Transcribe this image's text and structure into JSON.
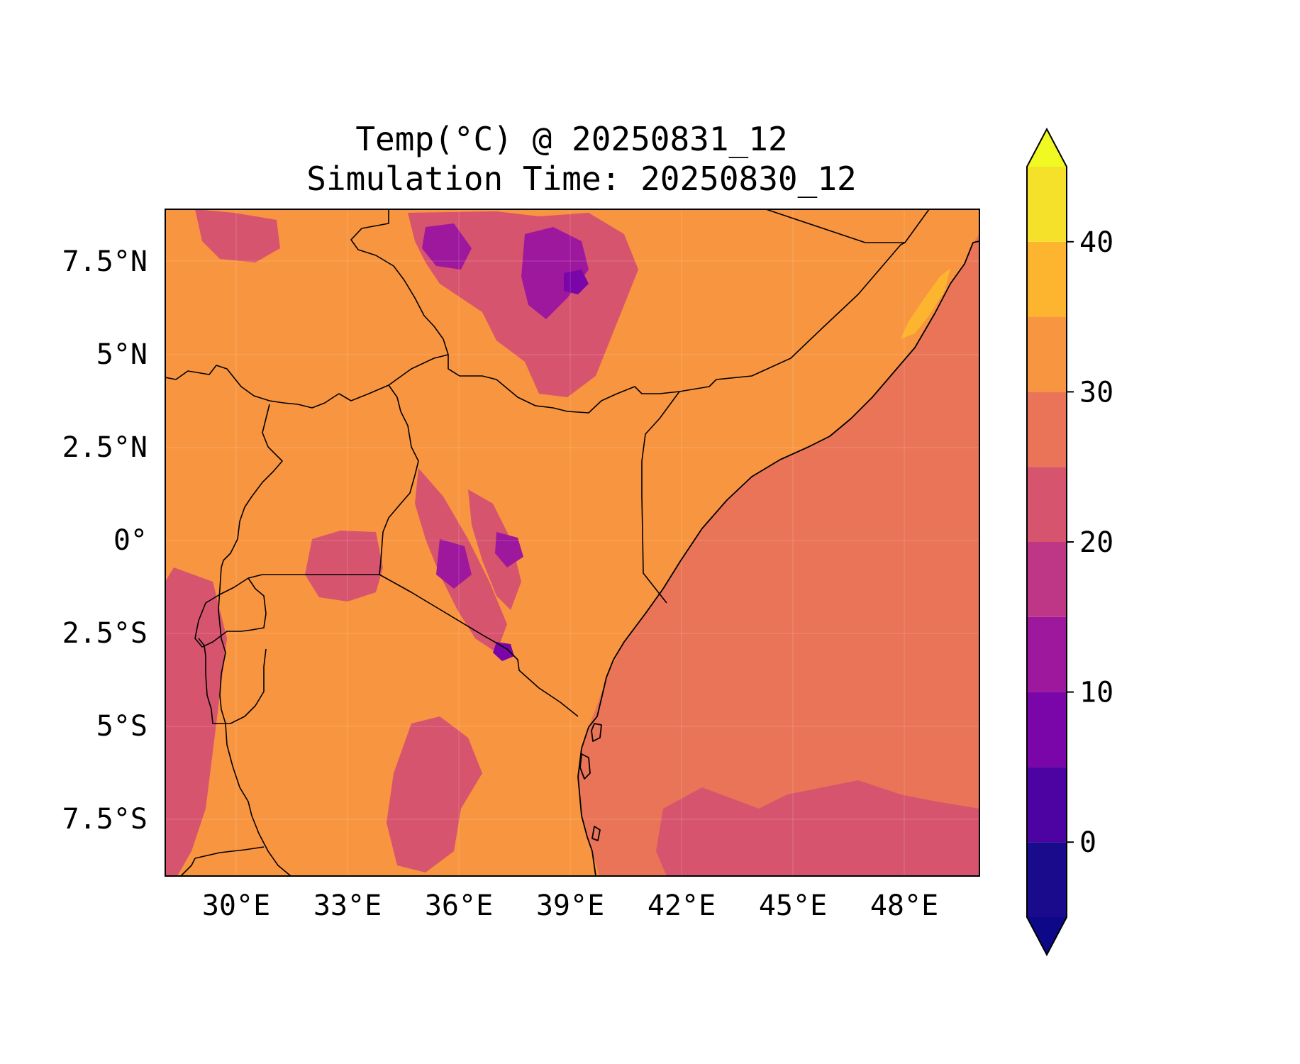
{
  "title": {
    "line1": "Temp(°C) @ 20250831_12",
    "line2": "Simulation Time: 20250830_12"
  },
  "map": {
    "lon_ticks": [
      "30°E",
      "33°E",
      "36°E",
      "39°E",
      "42°E",
      "45°E",
      "48°E"
    ],
    "lat_ticks": [
      "7.5°N",
      "5°N",
      "2.5°N",
      "0°",
      "2.5°S",
      "5°S",
      "7.5°S"
    ],
    "lon_range": [
      28.1,
      50.0
    ],
    "lat_range": [
      -9.0,
      8.9
    ]
  },
  "colorbar": {
    "tick_labels": [
      "0",
      "10",
      "20",
      "30",
      "40"
    ],
    "levels": [
      -5,
      0,
      5,
      10,
      15,
      20,
      25,
      30,
      35,
      40,
      45
    ],
    "colors": [
      "#1a0b8c",
      "#4c03a1",
      "#7a05a8",
      "#9d189d",
      "#bd3786",
      "#d6546e",
      "#ea7457",
      "#f89540",
      "#fdb42f",
      "#f6e12a"
    ],
    "under_color": "#0d0887",
    "over_color": "#f0f921",
    "extend": "both"
  },
  "palette": {
    "ocean": "#ea7457",
    "land_hot": "#f89540",
    "land_cool": "#d6546e",
    "highland": "#9d189d",
    "peak": "#7a05a8",
    "very_hot": "#fdb42f"
  }
}
